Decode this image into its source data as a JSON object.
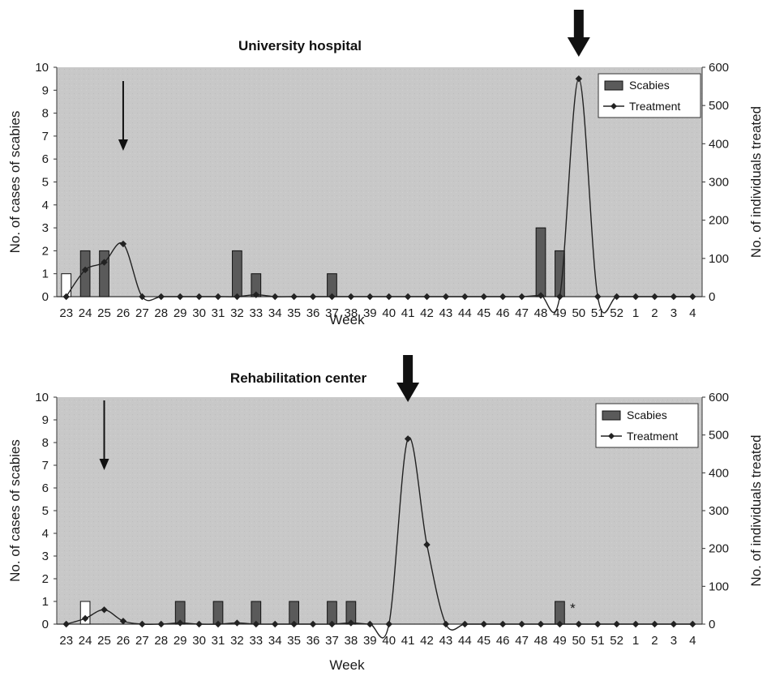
{
  "chart_data": [
    {
      "type": "bar",
      "title": "University hospital",
      "xlabel": "Week",
      "ylabel": "No. of cases of scabies",
      "y2label": "No. of individuals treated",
      "ylim": [
        0,
        10
      ],
      "y2lim": [
        0,
        600
      ],
      "yticks": [
        "0",
        "1",
        "2",
        "3",
        "4",
        "5",
        "6",
        "7",
        "8",
        "9",
        "10"
      ],
      "y2ticks": [
        "0",
        "100",
        "200",
        "300",
        "400",
        "500",
        "600"
      ],
      "categories": [
        "23",
        "24",
        "25",
        "26",
        "27",
        "28",
        "29",
        "30",
        "31",
        "32",
        "33",
        "34",
        "35",
        "36",
        "37",
        "38",
        "39",
        "40",
        "41",
        "42",
        "43",
        "44",
        "45",
        "46",
        "47",
        "48",
        "49",
        "50",
        "51",
        "52",
        "1",
        "2",
        "3",
        "4"
      ],
      "legend": {
        "position": "top-right",
        "entries": [
          "Scabies",
          "Treatment"
        ]
      },
      "series": [
        {
          "name": "Scabies",
          "kind": "bar",
          "axis": "left",
          "color": "#5a5a5a",
          "values": [
            1,
            2,
            2,
            0,
            0,
            0,
            0,
            0,
            0,
            2,
            1,
            0,
            0,
            0,
            1,
            0,
            0,
            0,
            0,
            0,
            0,
            0,
            0,
            0,
            0,
            3,
            2,
            0,
            0,
            0,
            0,
            0,
            0,
            0
          ],
          "highlight_outline_only": [
            "23"
          ]
        },
        {
          "name": "Treatment",
          "kind": "line",
          "axis": "right",
          "color": "#222222",
          "values": [
            0,
            70,
            90,
            138,
            0,
            0,
            0,
            0,
            0,
            0,
            5,
            0,
            0,
            0,
            0,
            0,
            0,
            0,
            0,
            0,
            0,
            0,
            0,
            0,
            0,
            3,
            0,
            570,
            0,
            0,
            0,
            0,
            0,
            0
          ]
        }
      ],
      "annotations": [
        {
          "type": "thin-arrow",
          "at": "26"
        },
        {
          "type": "thick-arrow",
          "at": "50"
        }
      ]
    },
    {
      "type": "bar",
      "title": "Rehabilitation center",
      "xlabel": "Week",
      "ylabel": "No. of cases of scabies",
      "y2label": "No. of individuals treated",
      "ylim": [
        0,
        10
      ],
      "y2lim": [
        0,
        600
      ],
      "yticks": [
        "0",
        "1",
        "2",
        "3",
        "4",
        "5",
        "6",
        "7",
        "8",
        "9",
        "10"
      ],
      "y2ticks": [
        "0",
        "100",
        "200",
        "300",
        "400",
        "500",
        "600"
      ],
      "categories": [
        "23",
        "24",
        "25",
        "26",
        "27",
        "28",
        "29",
        "30",
        "31",
        "32",
        "33",
        "34",
        "35",
        "36",
        "37",
        "38",
        "39",
        "40",
        "41",
        "42",
        "43",
        "44",
        "45",
        "46",
        "47",
        "48",
        "49",
        "50",
        "51",
        "52",
        "1",
        "2",
        "3",
        "4"
      ],
      "legend": {
        "position": "top-right",
        "entries": [
          "Scabies",
          "Treatment"
        ]
      },
      "series": [
        {
          "name": "Scabies",
          "kind": "bar",
          "axis": "left",
          "color": "#5a5a5a",
          "values": [
            0,
            1,
            0,
            0,
            0,
            0,
            1,
            0,
            1,
            0,
            1,
            0,
            1,
            0,
            1,
            1,
            0,
            0,
            0,
            0,
            0,
            0,
            0,
            0,
            0,
            0,
            1,
            0,
            0,
            0,
            0,
            0,
            0,
            0
          ],
          "highlight_outline_only": [
            "24"
          ]
        },
        {
          "name": "Treatment",
          "kind": "line",
          "axis": "right",
          "color": "#222222",
          "values": [
            0,
            15,
            38,
            8,
            0,
            0,
            3,
            0,
            0,
            3,
            0,
            0,
            0,
            0,
            0,
            3,
            0,
            0,
            490,
            210,
            0,
            0,
            0,
            0,
            0,
            0,
            0,
            0,
            0,
            0,
            0,
            0,
            0,
            0
          ]
        }
      ],
      "annotations": [
        {
          "type": "thin-arrow",
          "at": "25"
        },
        {
          "type": "thick-arrow",
          "at": "41"
        },
        {
          "type": "asterisk",
          "at": "49",
          "text": "*"
        }
      ]
    }
  ]
}
